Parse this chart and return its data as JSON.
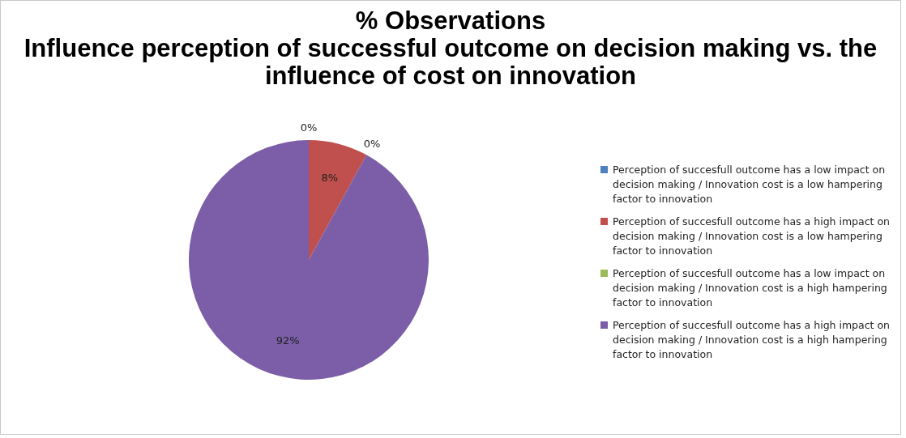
{
  "chart_data": {
    "type": "pie",
    "title": "% Observations\nInfluence perception of successful outcome on decision making vs. the influence of cost on innovation",
    "categories": [
      "Perception of succesfull outcome has a low impact on decision making / Innovation  cost is a low hampering factor to innovation",
      "Perception of succesfull outcome has a high impact on decision making / Innovation  cost is a low hampering factor to innovation",
      "Perception of succesfull outcome has a low impact on decision making / Innovation  cost is a high hampering factor to innovation",
      "Perception of succesfull outcome has a high impact on decision making / Innovation  cost is a high hampering factor to innovation"
    ],
    "values": [
      0,
      8,
      0,
      92
    ],
    "colors": [
      "#4f81bd",
      "#c0504d",
      "#9bbb59",
      "#7b5ea7"
    ],
    "value_labels": [
      "0%",
      "8%",
      "0%",
      "92%"
    ],
    "legend": "right"
  }
}
